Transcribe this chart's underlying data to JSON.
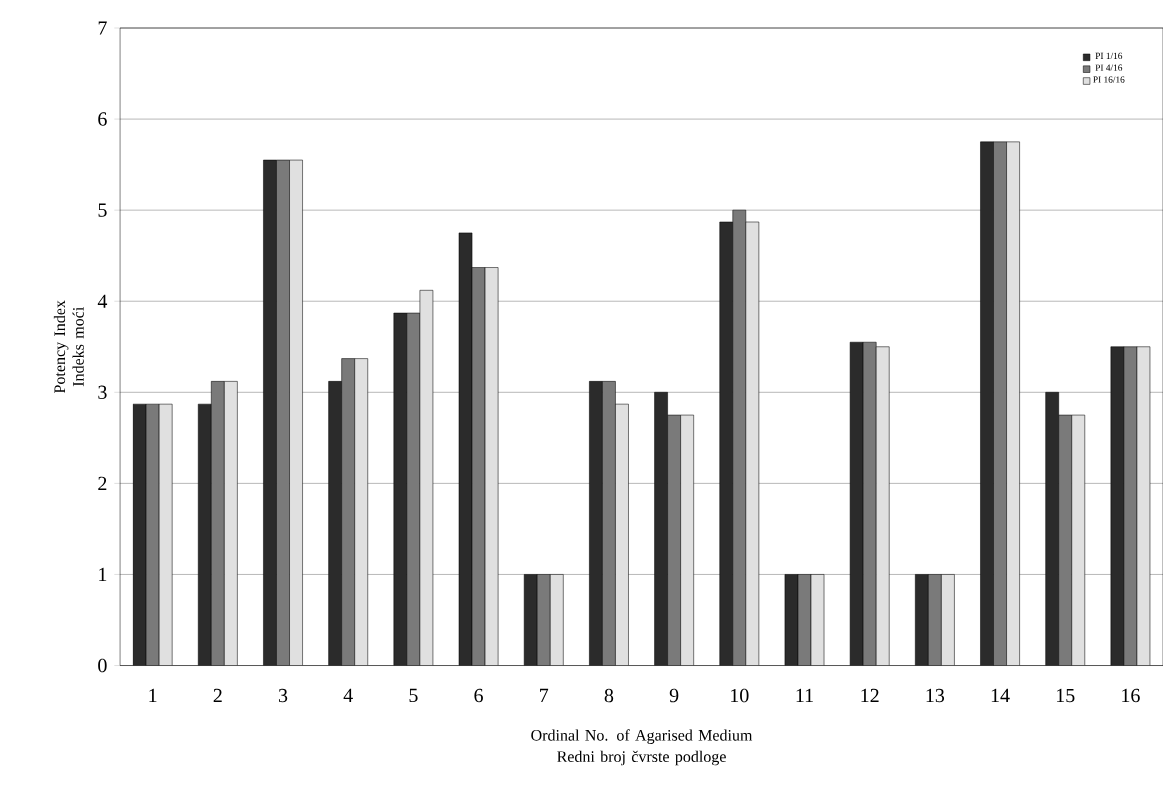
{
  "chart_data": {
    "type": "bar",
    "xlabel": "Ordinal No. of Agarised Medium Redni broj čvrste podloge",
    "ylabel": "Potency Index Indeks moći",
    "categories": [
      "1",
      "2",
      "3",
      "4",
      "5",
      "6",
      "7",
      "8",
      "9",
      "10",
      "11",
      "12",
      "13",
      "14",
      "15",
      "16"
    ],
    "series": [
      {
        "name": "PI 1/16",
        "color": "#2b2b2b",
        "values": [
          2.87,
          2.87,
          5.55,
          3.12,
          3.87,
          4.75,
          1.0,
          3.12,
          3.0,
          4.87,
          1.0,
          3.55,
          1.0,
          5.75,
          3.0,
          3.5
        ]
      },
      {
        "name": "PI 4/16",
        "color": "#7a7a7a",
        "values": [
          2.87,
          3.12,
          5.55,
          3.37,
          3.87,
          4.37,
          1.0,
          3.12,
          2.75,
          5.0,
          1.0,
          3.55,
          1.0,
          5.75,
          2.75,
          3.5
        ]
      },
      {
        "name": "PI 16/16",
        "color": "#e0e0e0",
        "values": [
          2.87,
          3.12,
          5.55,
          3.37,
          4.12,
          4.37,
          1.0,
          2.87,
          2.75,
          4.87,
          1.0,
          3.5,
          1.0,
          5.75,
          2.75,
          3.5
        ]
      }
    ],
    "ylim": [
      0,
      7
    ],
    "yticks": [
      0,
      1,
      2,
      3,
      4,
      5,
      6,
      7
    ],
    "grid": "y",
    "legend": "top right"
  }
}
